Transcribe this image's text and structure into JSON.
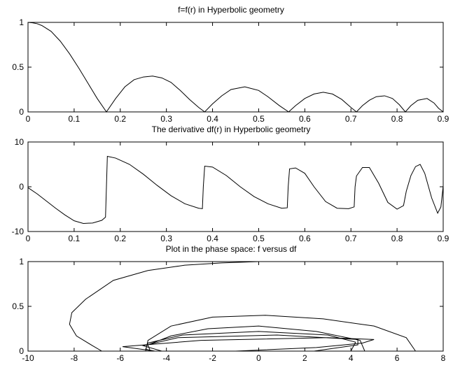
{
  "chart_data": [
    {
      "type": "line",
      "title": "f=f(r) in Hyperbolic geometry",
      "xlabel": "",
      "ylabel": "",
      "xlim": [
        0,
        0.9
      ],
      "ylim": [
        0,
        1
      ],
      "xticks": [
        0,
        0.1,
        0.2,
        0.3,
        0.4,
        0.5,
        0.6,
        0.7,
        0.8,
        0.9
      ],
      "xtick_labels": [
        "0",
        "0.1",
        "0.2",
        "0.3",
        "0.4",
        "0.5",
        "0.6",
        "0.7",
        "0.8",
        "0.9"
      ],
      "yticks": [
        0,
        0.5,
        1
      ],
      "ytick_labels": [
        "0",
        "0.5",
        "1"
      ],
      "grid": false,
      "series": [
        {
          "x": [
            0,
            0.01,
            0.02,
            0.03,
            0.05,
            0.07,
            0.09,
            0.11,
            0.13,
            0.15,
            0.17,
            0.19,
            0.21,
            0.23,
            0.25,
            0.27,
            0.29,
            0.31,
            0.33,
            0.35,
            0.37,
            0.383,
            0.4,
            0.42,
            0.44,
            0.47,
            0.5,
            0.52,
            0.545,
            0.565,
            0.58,
            0.6,
            0.62,
            0.64,
            0.66,
            0.68,
            0.7,
            0.712,
            0.725,
            0.74,
            0.755,
            0.773,
            0.79,
            0.805,
            0.818,
            0.83,
            0.845,
            0.865,
            0.88,
            0.89,
            0.9
          ],
          "y": [
            1,
            0.995,
            0.985,
            0.965,
            0.9,
            0.79,
            0.65,
            0.49,
            0.32,
            0.15,
            0.0,
            0.15,
            0.28,
            0.36,
            0.39,
            0.4,
            0.38,
            0.33,
            0.24,
            0.14,
            0.05,
            0.0,
            0.09,
            0.18,
            0.25,
            0.28,
            0.24,
            0.17,
            0.07,
            0.0,
            0.07,
            0.15,
            0.2,
            0.22,
            0.2,
            0.14,
            0.05,
            0.0,
            0.07,
            0.13,
            0.17,
            0.18,
            0.15,
            0.08,
            0.0,
            0.07,
            0.13,
            0.15,
            0.1,
            0.04,
            0.0
          ]
        }
      ]
    },
    {
      "type": "line",
      "title": "The derivative df(r) in Hyperbolic geometry",
      "xlabel": "",
      "ylabel": "",
      "xlim": [
        0,
        0.9
      ],
      "ylim": [
        -10,
        10
      ],
      "xticks": [
        0,
        0.1,
        0.2,
        0.3,
        0.4,
        0.5,
        0.6,
        0.7,
        0.8,
        0.9
      ],
      "xtick_labels": [
        "0",
        "0.1",
        "0.2",
        "0.3",
        "0.4",
        "0.5",
        "0.6",
        "0.7",
        "0.8",
        "0.9"
      ],
      "yticks": [
        -10,
        0,
        10
      ],
      "ytick_labels": [
        "-10",
        "0",
        "10"
      ],
      "grid": false,
      "series": [
        {
          "x": [
            0,
            0.02,
            0.04,
            0.06,
            0.08,
            0.1,
            0.12,
            0.14,
            0.16,
            0.168,
            0.17,
            0.172,
            0.19,
            0.22,
            0.25,
            0.28,
            0.31,
            0.34,
            0.37,
            0.378,
            0.38,
            0.383,
            0.4,
            0.43,
            0.46,
            0.49,
            0.52,
            0.55,
            0.562,
            0.564,
            0.567,
            0.58,
            0.6,
            0.62,
            0.645,
            0.67,
            0.695,
            0.707,
            0.709,
            0.712,
            0.725,
            0.74,
            0.76,
            0.78,
            0.8,
            0.814,
            0.82,
            0.83,
            0.84,
            0.85,
            0.86,
            0.875,
            0.888,
            0.895,
            0.9
          ],
          "y": [
            -0.2,
            -1.6,
            -3.2,
            -4.8,
            -6.3,
            -7.6,
            -8.2,
            -8.1,
            -7.5,
            -6.8,
            0.0,
            6.8,
            6.4,
            5.0,
            2.8,
            0.3,
            -2.0,
            -3.8,
            -4.8,
            -4.9,
            0.0,
            4.6,
            4.4,
            2.5,
            0.0,
            -2.2,
            -3.8,
            -4.8,
            -4.7,
            0.0,
            4.0,
            4.2,
            3.0,
            0.0,
            -3.3,
            -4.8,
            -4.9,
            -4.5,
            0.0,
            2.4,
            4.3,
            4.3,
            0.8,
            -3.5,
            -5.0,
            -4.2,
            -1.0,
            2.5,
            4.5,
            5.0,
            3.0,
            -2.5,
            -5.9,
            -4.5,
            0.2
          ]
        }
      ]
    },
    {
      "type": "line",
      "title": "Plot in the phase space: f versus df",
      "xlabel": "",
      "ylabel": "",
      "xlim": [
        -10,
        8
      ],
      "ylim": [
        0,
        1
      ],
      "xticks": [
        -10,
        -8,
        -6,
        -4,
        -2,
        0,
        2,
        4,
        6,
        8
      ],
      "xtick_labels": [
        "-10",
        "-8",
        "-6",
        "-4",
        "-2",
        "0",
        "2",
        "4",
        "6",
        "8"
      ],
      "yticks": [
        0,
        0.5,
        1
      ],
      "ytick_labels": [
        "0",
        "0.5",
        "1"
      ],
      "grid": false,
      "series": [
        {
          "x": [
            0,
            -1.6,
            -3.2,
            -4.8,
            -6.3,
            -7.5,
            -8.1,
            -8.2,
            -7.9,
            -7.2,
            -6.8,
            0.0,
            6.8,
            6.4,
            5.0,
            2.8,
            0.3,
            -2.0,
            -3.8,
            -4.8,
            -4.9,
            0.0,
            4.6,
            4.4,
            2.5,
            0.0,
            -2.2,
            -3.8,
            -4.8,
            -4.7,
            0.0,
            4.0,
            4.2,
            3.0,
            0.0,
            -3.3,
            -4.8,
            -4.9,
            -4.5,
            0.0,
            2.4,
            4.3,
            4.3,
            0.8,
            -3.5,
            -5.0,
            -4.2,
            -1.0,
            2.5,
            4.5,
            5.0,
            3.0,
            -2.5,
            -5.9,
            -4.5,
            0.2
          ],
          "y": [
            1,
            0.985,
            0.96,
            0.9,
            0.79,
            0.58,
            0.43,
            0.3,
            0.17,
            0.06,
            0.0,
            0.0,
            0.0,
            0.15,
            0.28,
            0.36,
            0.4,
            0.38,
            0.28,
            0.12,
            0.0,
            0.0,
            0.0,
            0.12,
            0.22,
            0.28,
            0.25,
            0.17,
            0.07,
            0.0,
            0.0,
            0.0,
            0.1,
            0.18,
            0.22,
            0.18,
            0.09,
            0.02,
            0.0,
            0.0,
            0.0,
            0.07,
            0.13,
            0.18,
            0.15,
            0.06,
            0.0,
            0.0,
            0.04,
            0.09,
            0.13,
            0.15,
            0.12,
            0.05,
            0.0,
            0.0
          ]
        }
      ]
    }
  ]
}
